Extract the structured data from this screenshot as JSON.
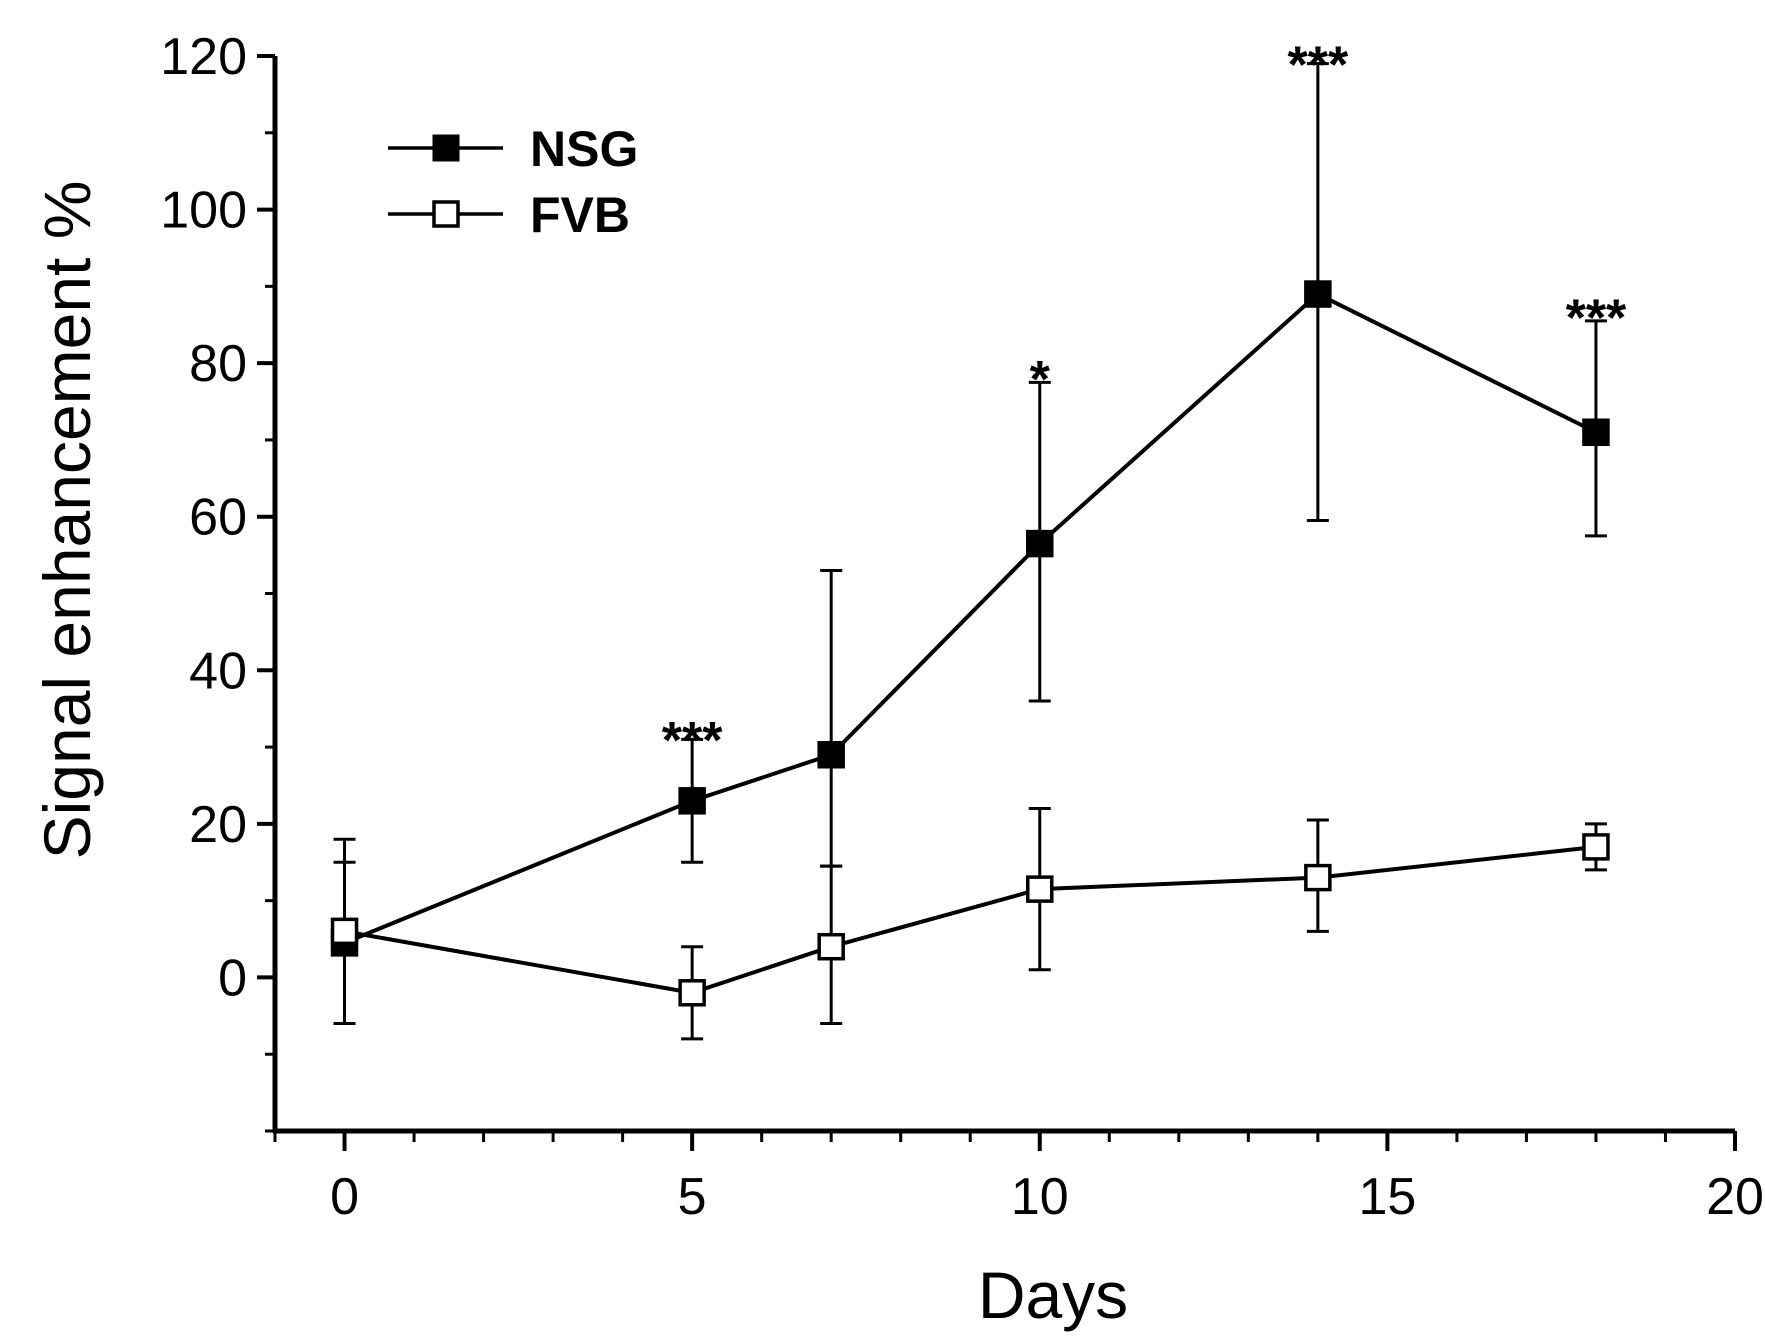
{
  "chart_data": {
    "type": "line",
    "title": "",
    "xlabel": "Days",
    "ylabel": "Signal enhancement %",
    "xlim": [
      -1,
      20
    ],
    "ylim": [
      -20,
      120
    ],
    "xticks": [
      0,
      5,
      10,
      15,
      20
    ],
    "yticks": [
      0,
      20,
      40,
      60,
      80,
      100,
      120
    ],
    "xtick_labels": [
      "0",
      "5",
      "10",
      "15",
      "20"
    ],
    "ytick_labels": [
      "0",
      "20",
      "40",
      "60",
      "80",
      "100",
      "120"
    ],
    "legend_position": "top-left",
    "grid": false,
    "series": [
      {
        "name": "NSG",
        "marker": "filled-square",
        "x": [
          0,
          5,
          7,
          10,
          14,
          18
        ],
        "y": [
          4.5,
          23,
          29,
          56.5,
          89,
          71
        ],
        "err_low": [
          -6,
          15,
          14.5,
          36,
          59.5,
          57.5
        ],
        "err_high": [
          15,
          31,
          53,
          77.5,
          119,
          85.5
        ]
      },
      {
        "name": "FVB",
        "marker": "open-square",
        "x": [
          0,
          5,
          7,
          10,
          14,
          18
        ],
        "y": [
          6,
          -2,
          4,
          11.5,
          13,
          17
        ],
        "err_low": [
          -6,
          -8,
          -6,
          1,
          6,
          14
        ],
        "err_high": [
          18,
          4,
          14.5,
          22,
          20.5,
          20
        ]
      }
    ],
    "annotations": [
      {
        "text": "***",
        "x": 5,
        "y": 33
      },
      {
        "text": "*",
        "x": 10,
        "y": 80
      },
      {
        "text": "***",
        "x": 14,
        "y": 121
      },
      {
        "text": "***",
        "x": 18,
        "y": 88
      }
    ]
  }
}
